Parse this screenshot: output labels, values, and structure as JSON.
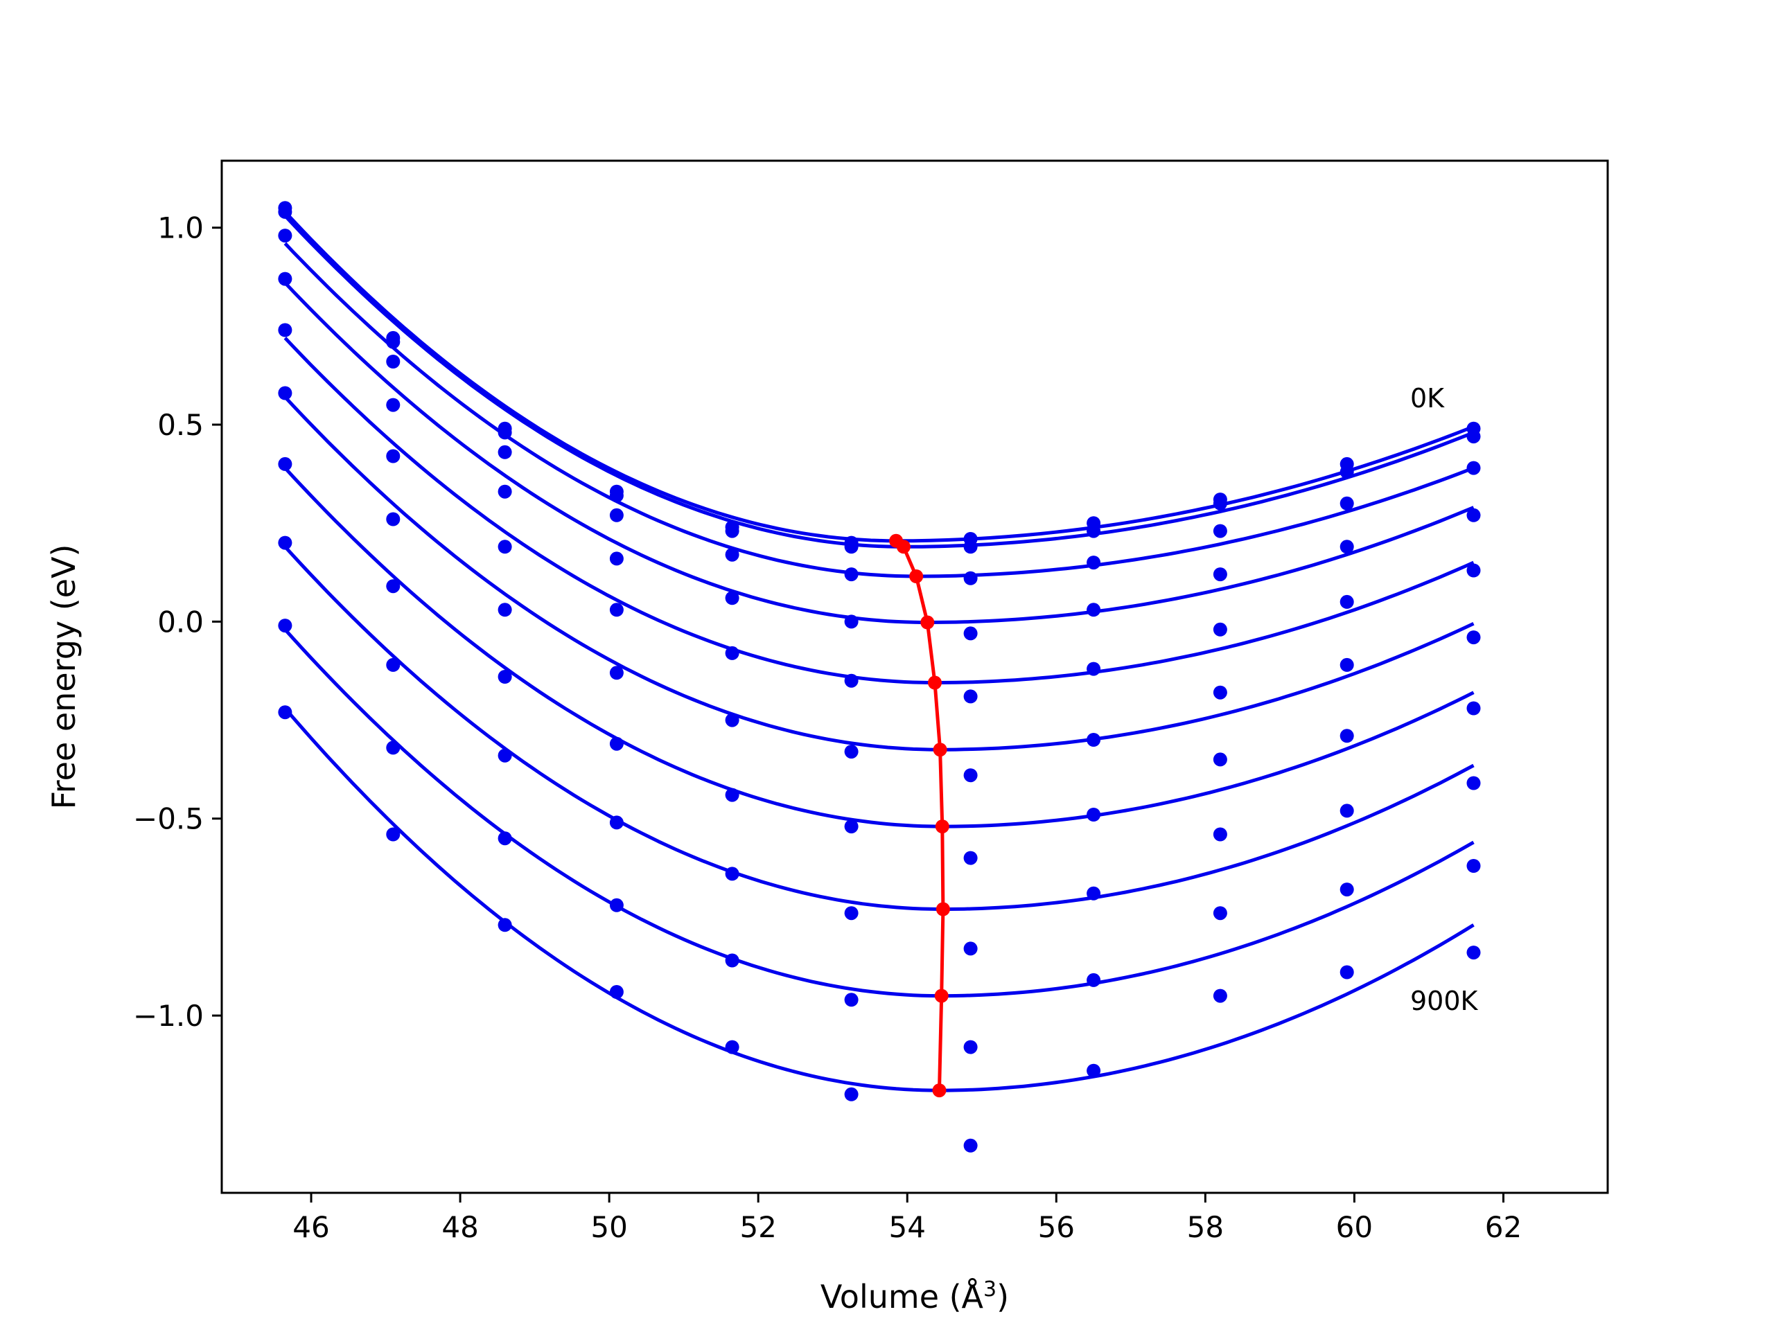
{
  "chart_data": {
    "type": "scatter",
    "xlabel": "Volume (Å",
    "xlabel_sup": "3",
    "xlabel_close": ")",
    "ylabel": "Free energy (eV)",
    "xlim": [
      44.8,
      63.4
    ],
    "ylim": [
      -1.45,
      1.17
    ],
    "x_ticks": [
      46,
      48,
      50,
      52,
      54,
      56,
      58,
      60,
      62
    ],
    "x_tick_labels": [
      "46",
      "48",
      "50",
      "52",
      "54",
      "56",
      "58",
      "60",
      "62"
    ],
    "y_ticks": [
      -1.0,
      -0.5,
      0.0,
      0.5,
      1.0
    ],
    "y_tick_labels": [
      "−1.0",
      "−0.5",
      "0.0",
      "0.5",
      "1.0"
    ],
    "grid": false,
    "annotations": [
      {
        "text": "0K",
        "x": 59.85,
        "y": 0.53
      },
      {
        "text": "900K",
        "x": 59.85,
        "y": -0.98
      }
    ],
    "colors": {
      "curves": "#0000ee",
      "points": "#0000ee",
      "minimum": "#ff0000"
    },
    "volumes": [
      45.65,
      47.1,
      48.6,
      50.1,
      51.65,
      53.25,
      54.85,
      56.5,
      58.2,
      59.9,
      61.6
    ],
    "series": [
      {
        "points": [
          1.05,
          0.72,
          0.49,
          0.33,
          0.24,
          0.2,
          0.21,
          0.25,
          0.31,
          0.4,
          0.49
        ],
        "min_v": 53.85,
        "min_f": 0.205
      },
      {
        "points": [
          1.04,
          0.71,
          0.48,
          0.32,
          0.23,
          0.19,
          0.19,
          0.23,
          0.3,
          0.38,
          0.47
        ],
        "min_v": 53.95,
        "min_f": 0.19
      },
      {
        "points": [
          0.98,
          0.66,
          0.43,
          0.27,
          0.17,
          0.12,
          0.11,
          0.15,
          0.23,
          0.3,
          0.39
        ],
        "min_v": 54.12,
        "min_f": 0.115
      },
      {
        "points": [
          0.87,
          0.55,
          0.33,
          0.16,
          0.06,
          0.0,
          -0.03,
          0.03,
          0.12,
          0.19,
          0.27
        ],
        "min_v": 54.27,
        "min_f": -0.002
      },
      {
        "points": [
          0.74,
          0.42,
          0.19,
          0.03,
          -0.08,
          -0.15,
          -0.19,
          -0.12,
          -0.02,
          0.05,
          0.13
        ],
        "min_v": 54.37,
        "min_f": -0.155
      },
      {
        "points": [
          0.58,
          0.26,
          0.03,
          -0.13,
          -0.25,
          -0.33,
          -0.39,
          -0.3,
          -0.18,
          -0.11,
          -0.04
        ],
        "min_v": 54.44,
        "min_f": -0.325
      },
      {
        "points": [
          0.4,
          0.09,
          -0.14,
          -0.31,
          -0.44,
          -0.52,
          -0.6,
          -0.49,
          -0.35,
          -0.29,
          -0.22
        ],
        "min_v": 54.47,
        "min_f": -0.52
      },
      {
        "points": [
          0.2,
          -0.11,
          -0.34,
          -0.51,
          -0.64,
          -0.74,
          -0.83,
          -0.69,
          -0.54,
          -0.48,
          -0.41
        ],
        "min_v": 54.48,
        "min_f": -0.73
      },
      {
        "points": [
          -0.01,
          -0.32,
          -0.55,
          -0.72,
          -0.86,
          -0.96,
          -1.08,
          -0.91,
          -0.74,
          -0.68,
          -0.62
        ],
        "min_v": 54.46,
        "min_f": -0.95
      },
      {
        "points": [
          -0.23,
          -0.54,
          -0.77,
          -0.94,
          -1.08,
          -1.2,
          -1.33,
          -1.14,
          -0.95,
          -0.89,
          -0.84
        ],
        "min_v": 54.43,
        "min_f": -1.19
      }
    ],
    "fit_curves": [
      {
        "v_start": 45.65,
        "f_start": 1.04,
        "v_end": 61.6,
        "f_end": 0.495
      },
      {
        "v_start": 45.65,
        "f_start": 1.03,
        "v_end": 61.6,
        "f_end": 0.48
      },
      {
        "v_start": 45.65,
        "f_start": 0.96,
        "v_end": 61.6,
        "f_end": 0.39
      },
      {
        "v_start": 45.65,
        "f_start": 0.86,
        "v_end": 61.6,
        "f_end": 0.29
      },
      {
        "v_start": 45.65,
        "f_start": 0.72,
        "v_end": 61.6,
        "f_end": 0.15
      },
      {
        "v_start": 45.65,
        "f_start": 0.57,
        "v_end": 61.6,
        "f_end": -0.005
      },
      {
        "v_start": 45.65,
        "f_start": 0.39,
        "v_end": 61.6,
        "f_end": -0.18
      },
      {
        "v_start": 45.65,
        "f_start": 0.19,
        "v_end": 61.6,
        "f_end": -0.365
      },
      {
        "v_start": 45.65,
        "f_start": -0.02,
        "v_end": 61.6,
        "f_end": -0.56
      },
      {
        "v_start": 45.65,
        "f_start": -0.22,
        "v_end": 61.6,
        "f_end": -0.77
      }
    ]
  }
}
